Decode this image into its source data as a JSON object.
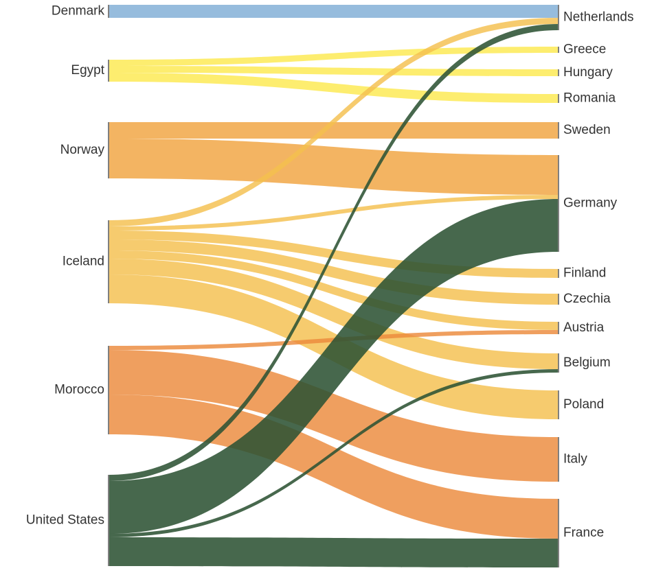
{
  "chart_data": {
    "type": "sankey",
    "sources": [
      {
        "id": "denmark",
        "label": "Denmark",
        "color": "#7fadd6"
      },
      {
        "id": "egypt",
        "label": "Egypt",
        "color": "#fce94f"
      },
      {
        "id": "norway",
        "label": "Norway",
        "color": "#f0a440"
      },
      {
        "id": "iceland",
        "label": "Iceland",
        "color": "#f4c04e"
      },
      {
        "id": "morocco",
        "label": "Morocco",
        "color": "#ec8a3c"
      },
      {
        "id": "united_states",
        "label": "United States",
        "color": "#2d5334"
      }
    ],
    "targets": [
      {
        "id": "netherlands",
        "label": "Netherlands"
      },
      {
        "id": "greece",
        "label": "Greece"
      },
      {
        "id": "hungary",
        "label": "Hungary"
      },
      {
        "id": "romania",
        "label": "Romania"
      },
      {
        "id": "sweden",
        "label": "Sweden"
      },
      {
        "id": "germany",
        "label": "Germany"
      },
      {
        "id": "finland",
        "label": "Finland"
      },
      {
        "id": "czechia",
        "label": "Czechia"
      },
      {
        "id": "austria",
        "label": "Austria"
      },
      {
        "id": "belgium",
        "label": "Belgium"
      },
      {
        "id": "poland",
        "label": "Poland"
      },
      {
        "id": "italy",
        "label": "Italy"
      },
      {
        "id": "france",
        "label": "France"
      }
    ],
    "links": [
      {
        "source": "denmark",
        "target": "netherlands",
        "value": 19
      },
      {
        "source": "egypt",
        "target": "greece",
        "value": 9
      },
      {
        "source": "egypt",
        "target": "hungary",
        "value": 10
      },
      {
        "source": "egypt",
        "target": "romania",
        "value": 13
      },
      {
        "source": "norway",
        "target": "sweden",
        "value": 24
      },
      {
        "source": "norway",
        "target": "germany",
        "value": 58
      },
      {
        "source": "iceland",
        "target": "netherlands",
        "value": 9
      },
      {
        "source": "iceland",
        "target": "germany",
        "value": 6
      },
      {
        "source": "iceland",
        "target": "finland",
        "value": 13
      },
      {
        "source": "iceland",
        "target": "czechia",
        "value": 16
      },
      {
        "source": "iceland",
        "target": "austria",
        "value": 12
      },
      {
        "source": "iceland",
        "target": "belgium",
        "value": 23
      },
      {
        "source": "iceland",
        "target": "poland",
        "value": 42
      },
      {
        "source": "morocco",
        "target": "austria",
        "value": 6
      },
      {
        "source": "morocco",
        "target": "italy",
        "value": 65
      },
      {
        "source": "morocco",
        "target": "france",
        "value": 58
      },
      {
        "source": "united_states",
        "target": "netherlands",
        "value": 9
      },
      {
        "source": "united_states",
        "target": "germany",
        "value": 77
      },
      {
        "source": "united_states",
        "target": "belgium",
        "value": 5
      },
      {
        "source": "united_states",
        "target": "france",
        "value": 42
      }
    ]
  }
}
